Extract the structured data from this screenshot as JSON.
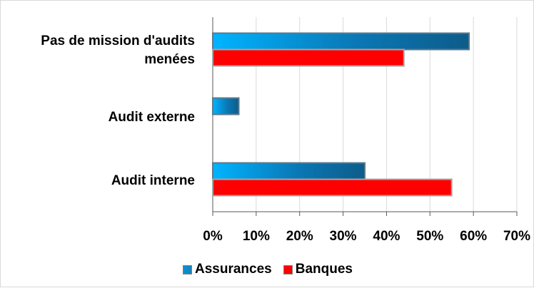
{
  "chart_data": {
    "type": "bar",
    "orientation": "horizontal",
    "categories": [
      "Pas de mission d'audits\nmenées",
      "Audit externe",
      "Audit interne"
    ],
    "series": [
      {
        "name": "Assurances",
        "values": [
          59,
          6,
          35
        ],
        "color": "#1f7fb4"
      },
      {
        "name": "Banques",
        "values": [
          44,
          0,
          55
        ],
        "color": "#ff0000"
      }
    ],
    "xlim": [
      0,
      70
    ],
    "xticks": [
      "0%",
      "10%",
      "20%",
      "30%",
      "40%",
      "50%",
      "60%",
      "70%"
    ],
    "grid": true,
    "legend_position": "bottom"
  },
  "legend": {
    "items": [
      {
        "label": "Assurances",
        "color": "#1f7fb4"
      },
      {
        "label": "Banques",
        "color": "#ff0000"
      }
    ]
  }
}
